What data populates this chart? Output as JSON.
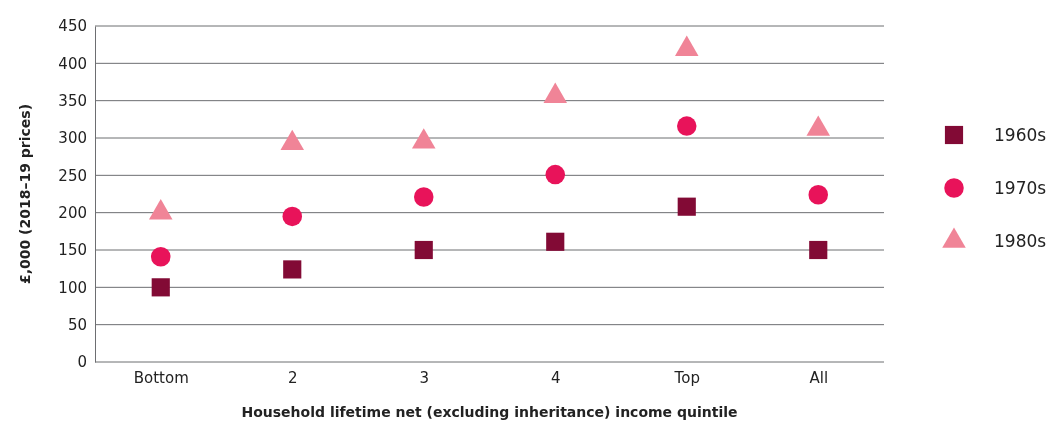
{
  "chart_data": {
    "type": "scatter",
    "xlabel": "Household lifetime net (excluding inheritance) income quintile",
    "ylabel": "£,000 (2018–19 prices)",
    "categories": [
      "Bottom",
      "2",
      "3",
      "4",
      "Top",
      "All"
    ],
    "series": [
      {
        "name": "1960s",
        "color": "#820a35",
        "marker": "square",
        "values": [
          100,
          124,
          150,
          161,
          208,
          150
        ]
      },
      {
        "name": "1970s",
        "color": "#e8135a",
        "marker": "circle",
        "values": [
          141,
          195,
          221,
          251,
          316,
          224
        ]
      },
      {
        "name": "1980s",
        "color": "#f08497",
        "marker": "triangle",
        "values": [
          200,
          293,
          295,
          356,
          419,
          312
        ]
      }
    ],
    "ylim": [
      0,
      450
    ],
    "yticks": [
      0,
      50,
      100,
      150,
      200,
      250,
      300,
      350,
      400,
      450
    ],
    "grid": "y",
    "legend": "right"
  }
}
